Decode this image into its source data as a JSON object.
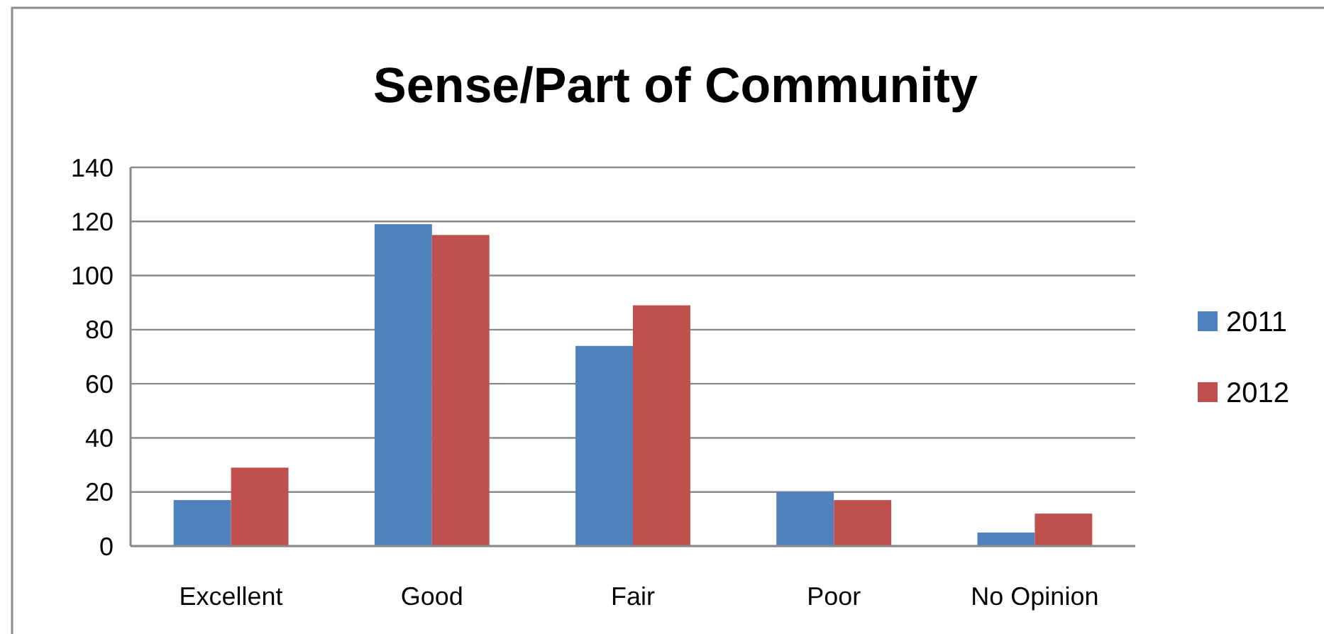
{
  "chart_data": {
    "type": "bar",
    "title": "Sense/Part of Community",
    "categories": [
      "Excellent",
      "Good",
      "Fair",
      "Poor",
      "No Opinion"
    ],
    "series": [
      {
        "name": "2011",
        "color": "#4f81bd",
        "values": [
          17,
          119,
          74,
          20,
          5
        ]
      },
      {
        "name": "2012",
        "color": "#c0504d",
        "values": [
          29,
          115,
          89,
          17,
          12
        ]
      }
    ],
    "ylim": [
      0,
      140
    ],
    "yticks": [
      0,
      20,
      40,
      60,
      80,
      100,
      120,
      140
    ],
    "grid": "y",
    "legend": "right"
  }
}
